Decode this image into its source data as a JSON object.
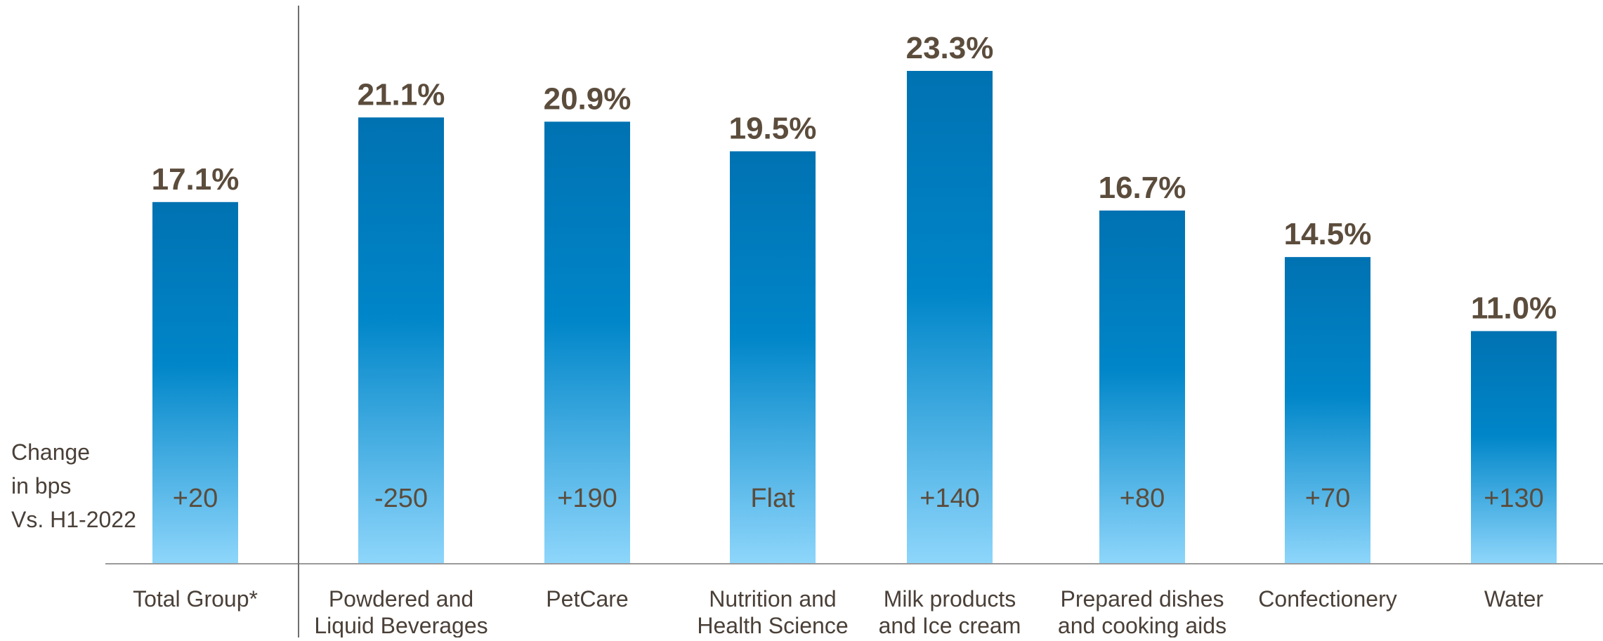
{
  "chart_data": {
    "type": "bar",
    "title": "",
    "xlabel": "",
    "ylabel": "",
    "ylim": [
      0,
      25
    ],
    "grid": false,
    "legend": "none",
    "categories": [
      [
        "Total Group*"
      ],
      [
        "Powdered and",
        "Liquid Beverages"
      ],
      [
        "PetCare"
      ],
      [
        "Nutrition and",
        "Health Science"
      ],
      [
        "Milk products",
        "and Ice cream"
      ],
      [
        "Prepared dishes",
        "and cooking aids"
      ],
      [
        "Confectionery"
      ],
      [
        "Water"
      ]
    ],
    "values": [
      17.1,
      21.1,
      20.9,
      19.5,
      23.3,
      16.7,
      14.5,
      11.0
    ],
    "value_labels": [
      "17.1%",
      "21.1%",
      "20.9%",
      "19.5%",
      "23.3%",
      "16.7%",
      "14.5%",
      "11.0%"
    ],
    "change_labels": [
      "+20",
      "-250",
      "+190",
      "Flat",
      "+140",
      "+80",
      "+70",
      "+130"
    ],
    "change_caption": [
      "Change",
      "in bps",
      "Vs. H1-2022"
    ]
  },
  "colors": {
    "bar_top": "#0072B2",
    "bar_mid": "#0086C9",
    "bar_bottom": "#8ED6FB",
    "value_text": "#5B4C3C",
    "change_text": "#5B4C3C",
    "axis_line": "#9A9A9A",
    "label_text": "#4A4038",
    "divider": "#6E6E6E"
  }
}
